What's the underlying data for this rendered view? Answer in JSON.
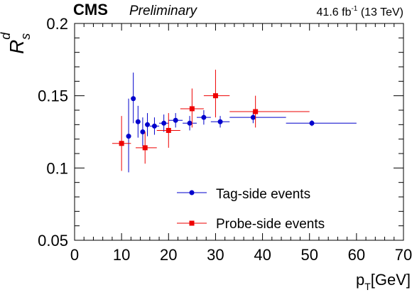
{
  "header": {
    "experiment": "CMS",
    "status": "Preliminary",
    "lumi_value": "41.6 fb",
    "lumi_exp": "-1",
    "energy": " (13 TeV)"
  },
  "chart_data": {
    "type": "scatter",
    "title": "",
    "xlabel": {
      "main": "p",
      "sub": "T",
      "unit": "[GeV]"
    },
    "ylabel": {
      "main": "R",
      "sub": "s",
      "sup": "d"
    },
    "xlim": [
      0,
      70
    ],
    "ylim": [
      0.05,
      0.2
    ],
    "xticks": [
      0,
      10,
      20,
      30,
      40,
      50,
      60,
      70
    ],
    "yticks": [
      0.05,
      0.1,
      0.15,
      0.2
    ],
    "ytick_labels": [
      "0.05",
      "0.1",
      "0.15",
      "0.2"
    ],
    "grid": false,
    "legend_position": "bottom-center",
    "series": [
      {
        "name": "Tag-side events",
        "color": "#0000cc",
        "marker": "circle",
        "points": [
          {
            "x": 11.5,
            "xlo": 11.0,
            "xhi": 12.0,
            "y": 0.122,
            "ylo": 0.097,
            "yhi": 0.148
          },
          {
            "x": 12.5,
            "xlo": 12.0,
            "xhi": 13.0,
            "y": 0.148,
            "ylo": 0.131,
            "yhi": 0.166
          },
          {
            "x": 13.5,
            "xlo": 13.0,
            "xhi": 14.0,
            "y": 0.132,
            "ylo": 0.121,
            "yhi": 0.143
          },
          {
            "x": 14.5,
            "xlo": 14.0,
            "xhi": 15.0,
            "y": 0.125,
            "ylo": 0.115,
            "yhi": 0.135
          },
          {
            "x": 15.5,
            "xlo": 15.0,
            "xhi": 16.0,
            "y": 0.13,
            "ylo": 0.122,
            "yhi": 0.138
          },
          {
            "x": 17.0,
            "xlo": 16.0,
            "xhi": 18.0,
            "y": 0.129,
            "ylo": 0.123,
            "yhi": 0.135
          },
          {
            "x": 19.0,
            "xlo": 18.0,
            "xhi": 20.0,
            "y": 0.131,
            "ylo": 0.125,
            "yhi": 0.137
          },
          {
            "x": 21.5,
            "xlo": 20.0,
            "xhi": 23.0,
            "y": 0.133,
            "ylo": 0.128,
            "yhi": 0.138
          },
          {
            "x": 24.5,
            "xlo": 23.0,
            "xhi": 26.0,
            "y": 0.131,
            "ylo": 0.126,
            "yhi": 0.136
          },
          {
            "x": 27.5,
            "xlo": 26.0,
            "xhi": 29.0,
            "y": 0.135,
            "ylo": 0.13,
            "yhi": 0.14
          },
          {
            "x": 31.0,
            "xlo": 29.0,
            "xhi": 33.0,
            "y": 0.132,
            "ylo": 0.128,
            "yhi": 0.136
          },
          {
            "x": 38.0,
            "xlo": 33.0,
            "xhi": 45.0,
            "y": 0.135,
            "ylo": 0.131,
            "yhi": 0.139
          },
          {
            "x": 50.5,
            "xlo": 45.0,
            "xhi": 60.0,
            "y": 0.131,
            "ylo": 0.129,
            "yhi": 0.133
          }
        ]
      },
      {
        "name": "Probe-side events",
        "color": "#ee0000",
        "marker": "square",
        "points": [
          {
            "x": 10.0,
            "xlo": 8.0,
            "xhi": 12.0,
            "y": 0.117,
            "ylo": 0.098,
            "yhi": 0.136
          },
          {
            "x": 15.0,
            "xlo": 13.0,
            "xhi": 17.5,
            "y": 0.114,
            "ylo": 0.103,
            "yhi": 0.125
          },
          {
            "x": 20.0,
            "xlo": 17.5,
            "xhi": 22.5,
            "y": 0.126,
            "ylo": 0.114,
            "yhi": 0.138
          },
          {
            "x": 25.0,
            "xlo": 22.5,
            "xhi": 27.5,
            "y": 0.141,
            "ylo": 0.128,
            "yhi": 0.155
          },
          {
            "x": 30.0,
            "xlo": 27.5,
            "xhi": 33.0,
            "y": 0.15,
            "ylo": 0.135,
            "yhi": 0.168
          },
          {
            "x": 38.5,
            "xlo": 33.0,
            "xhi": 50.0,
            "y": 0.139,
            "ylo": 0.128,
            "yhi": 0.15
          }
        ]
      }
    ]
  }
}
